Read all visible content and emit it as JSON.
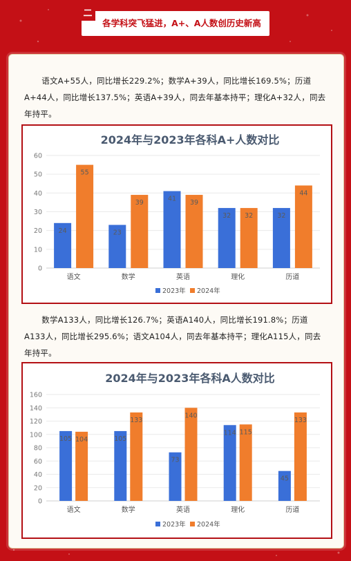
{
  "section": {
    "number": "二",
    "title": "各学科突飞猛进，A+、A人数创历史新高"
  },
  "paragraphs": {
    "p1": "语文A+55人，同比增长229.2%；数学A+39人，同比增长169.5%；历道A+44人，同比增长137.5%；英语A+39人，同去年基本持平；理化A+32人，同去年持平。",
    "p2": "数学A133人，同比增长126.7%；英语A140人，同比增长191.8%；历道A133人，同比增长295.6%；语文A104人，同去年基本持平；理化A115人，同去年持平。"
  },
  "colors": {
    "series_2023": "#3a6fd8",
    "series_2024": "#f07d2c",
    "title": "#4a5a70",
    "frame": "#b30f14"
  },
  "chart_data": [
    {
      "type": "bar",
      "title": "2024年与2023年各科A+人数对比",
      "categories": [
        "语文",
        "数学",
        "英语",
        "理化",
        "历道"
      ],
      "series": [
        {
          "name": "2023年",
          "values": [
            24,
            23,
            41,
            32,
            32
          ]
        },
        {
          "name": "2024年",
          "values": [
            55,
            39,
            39,
            32,
            44
          ]
        }
      ],
      "yticks": [
        0,
        10,
        20,
        30,
        40,
        50,
        60
      ],
      "ylim": [
        0,
        60
      ],
      "grid": true,
      "legend": "bottom"
    },
    {
      "type": "bar",
      "title": "2024年与2023年各科A人数对比",
      "categories": [
        "语文",
        "数学",
        "英语",
        "理化",
        "历道"
      ],
      "series": [
        {
          "name": "2023年",
          "values": [
            105,
            105,
            73,
            114,
            45
          ]
        },
        {
          "name": "2024年",
          "values": [
            104,
            133,
            140,
            115,
            133
          ]
        }
      ],
      "yticks": [
        0,
        20,
        40,
        60,
        80,
        100,
        120,
        140,
        160
      ],
      "ylim": [
        0,
        160
      ],
      "grid": true,
      "legend": "bottom"
    }
  ]
}
